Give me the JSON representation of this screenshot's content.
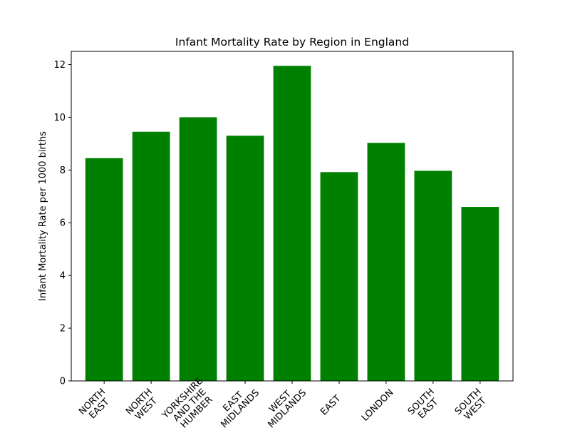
{
  "chart_data": {
    "type": "bar",
    "title": "Infant Mortality Rate by Region in England",
    "xlabel": "",
    "ylabel": "Infant Mortality Rate per 1000 births",
    "categories": [
      "NORTH\nEAST",
      "NORTH\nWEST",
      "YORKSHIRE\nAND THE\nHUMBER",
      "EAST\nMIDLANDS",
      "WEST\nMIDLANDS",
      "EAST",
      "LONDON",
      "SOUTH\nEAST",
      "SOUTH\nWEST"
    ],
    "values": [
      8.45,
      9.45,
      10.0,
      9.3,
      11.95,
      7.92,
      9.03,
      7.97,
      6.6
    ],
    "ylim": [
      0,
      12.5
    ],
    "yticks": [
      0,
      2,
      4,
      6,
      8,
      10,
      12
    ],
    "bar_color": "#008000",
    "grid": false,
    "legend": "none",
    "xtick_rotation": 45
  }
}
